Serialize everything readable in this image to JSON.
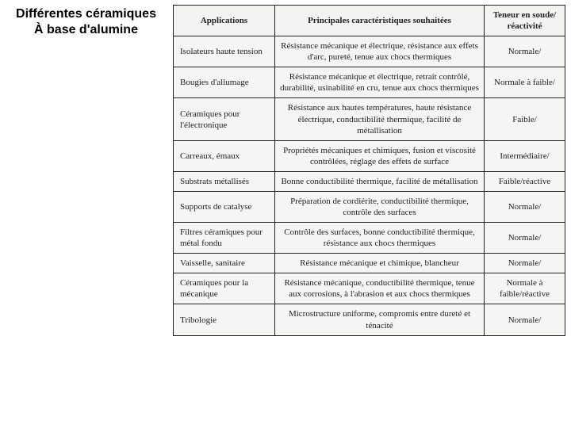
{
  "title_line1": "Différentes céramiques",
  "title_line2": "À base d'alumine",
  "table": {
    "headers": {
      "applications": "Applications",
      "characteristics": "Principales caractéristiques souhaitées",
      "tenor": "Teneur en soude/ réactivité"
    },
    "rows": [
      {
        "app": "Isolateurs haute tension",
        "char": "Résistance mécanique et électrique, résistance aux effets d'arc, pureté, tenue aux chocs thermiques",
        "ten": "Normale/"
      },
      {
        "app": "Bougies d'allumage",
        "char": "Résistance mécanique et électrique, retrait contrôlé, durabilité, usinabilité en cru, tenue aux chocs thermiques",
        "ten": "Normale à faible/"
      },
      {
        "app": "Céramiques pour l'électronique",
        "char": "Résistance aux hautes températures, haute résistance électrique, conductibilité thermique, facilité de métallisation",
        "ten": "Faible/"
      },
      {
        "app": "Carreaux, émaux",
        "char": "Propriétés mécaniques et chimiques, fusion et viscosité contrôlées, réglage des effets de surface",
        "ten": "Intermédiaire/"
      },
      {
        "app": "Substrats métallisés",
        "char": "Bonne conductibilité thermique, facilité de métallisation",
        "ten": "Faible/réactive"
      },
      {
        "app": "Supports de catalyse",
        "char": "Préparation de cordiérite, conductibilité thermique, contrôle des surfaces",
        "ten": "Normale/"
      },
      {
        "app": "Filtres céramiques pour métal fondu",
        "char": "Contrôle des surfaces, bonne conductibilité thermique, résistance aux chocs thermiques",
        "ten": "Normale/"
      },
      {
        "app": "Vaisselle, sanitaire",
        "char": "Résistance mécanique et chimique, blancheur",
        "ten": "Normale/"
      },
      {
        "app": "Céramiques pour la mécanique",
        "char": "Résistance mécanique, conductibilité thermique, tenue aux corrosions, à l'abrasion et aux chocs thermiques",
        "ten": "Normale à faible/réactive"
      },
      {
        "app": "Tribologie",
        "char": "Microstructure uniforme, compromis entre dureté et ténacité",
        "ten": "Normale/"
      }
    ]
  }
}
